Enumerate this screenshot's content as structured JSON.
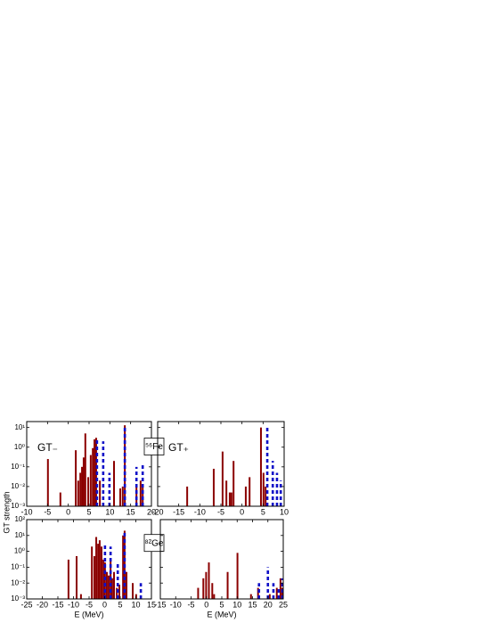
{
  "chart_data": [
    {
      "type": "bar",
      "yscale": "log",
      "ylabel": "GT strength",
      "annotation": "GT₋",
      "inset": "⁵⁶Fe",
      "xlim": [
        -10,
        20
      ],
      "xticks": [
        -10,
        -5,
        0,
        5,
        10,
        15,
        20
      ],
      "ylim": [
        0.001,
        20
      ],
      "yticks": [
        {
          "value": 0.001,
          "label": "10⁻³"
        },
        {
          "value": 0.01,
          "label": "10⁻²"
        },
        {
          "value": 0.1,
          "label": "10⁻¹"
        },
        {
          "value": 1,
          "label": "10⁰"
        },
        {
          "value": 10,
          "label": "10¹"
        }
      ],
      "series": [
        {
          "color": "#8b0000",
          "style": "solid",
          "x": [
            -4.9,
            -1.9,
            1.8,
            2.4,
            2.9,
            3.3,
            3.7,
            4.1,
            4.8,
            5.4,
            5.9,
            6.3,
            6.7,
            7.6,
            11,
            12.5,
            13.1,
            13.6,
            16.4,
            17.4,
            17.9
          ],
          "values": [
            0.25,
            0.005,
            0.7,
            0.02,
            0.05,
            0.1,
            0.3,
            5,
            0.03,
            0.4,
            0.9,
            2.5,
            3,
            0.02,
            0.2,
            0.008,
            0.01,
            13,
            0.01,
            0.02,
            0.01
          ]
        },
        {
          "color": "#1010c8",
          "style": "dashed",
          "x": [
            6.9,
            8.4,
            9.9,
            13.6,
            16.4,
            17.9
          ],
          "values": [
            3,
            2,
            0.05,
            13,
            0.1,
            0.15
          ]
        }
      ]
    },
    {
      "type": "bar",
      "yscale": "log",
      "annotation": "GT₊",
      "xlim": [
        -20,
        10
      ],
      "xticks": [
        -20,
        -15,
        -10,
        -5,
        0,
        5,
        10
      ],
      "ylim": [
        0.001,
        20
      ],
      "yticks": [
        {
          "value": 0.001,
          "label": "10⁻³"
        },
        {
          "value": 0.01,
          "label": "10⁻²"
        },
        {
          "value": 0.1,
          "label": "10⁻¹"
        },
        {
          "value": 1,
          "label": "10⁰"
        },
        {
          "value": 10,
          "label": "10¹"
        }
      ],
      "series": [
        {
          "color": "#8b0000",
          "style": "solid",
          "x": [
            -13,
            -6.7,
            -4.6,
            -3.7,
            -2.9,
            -2.5,
            -2,
            0.9,
            1.8,
            4.5,
            5.1,
            5.6
          ],
          "values": [
            0.01,
            0.08,
            0.6,
            0.02,
            0.005,
            0.005,
            0.2,
            0.01,
            0.03,
            10,
            0.05,
            0.01
          ]
        },
        {
          "color": "#1010c8",
          "style": "dashed",
          "x": [
            6,
            7.3,
            8.3,
            9.2
          ],
          "values": [
            10,
            0.2,
            0.05,
            0.02
          ]
        }
      ]
    },
    {
      "type": "bar",
      "yscale": "log",
      "xlabel": "E (MeV)",
      "inset": "⁸²Ge",
      "xlim": [
        -25,
        15
      ],
      "xticks": [
        -25,
        -20,
        -15,
        -10,
        -5,
        0,
        5,
        10,
        15
      ],
      "ylim": [
        0.001,
        100
      ],
      "yticks": [
        {
          "value": 0.001,
          "label": "10⁻³"
        },
        {
          "value": 0.01,
          "label": "10⁻²"
        },
        {
          "value": 0.1,
          "label": "10⁻¹"
        },
        {
          "value": 1,
          "label": "10⁰"
        },
        {
          "value": 10,
          "label": "10¹"
        },
        {
          "value": 100,
          "label": "10²"
        }
      ],
      "series": [
        {
          "color": "#8b0000",
          "style": "solid",
          "x": [
            -11.6,
            -9,
            -7.6,
            -4.1,
            -3.3,
            -2.7,
            -2.1,
            -1.6,
            -1,
            -0.4,
            0.1,
            0.7,
            1.3,
            1.9,
            2.4,
            3,
            3.9,
            4.7,
            5.9,
            6.4,
            7,
            9,
            10.1
          ],
          "values": [
            0.3,
            0.5,
            0.002,
            2,
            0.5,
            8,
            3,
            5,
            2,
            0.3,
            0.2,
            0.05,
            0.03,
            0.3,
            0.02,
            0.05,
            0.005,
            0.008,
            10,
            20,
            0.05,
            0.01,
            0.002
          ]
        },
        {
          "color": "#1010c8",
          "style": "dashed",
          "x": [
            0.1,
            1.9,
            4.2,
            6.4,
            11.6
          ],
          "values": [
            3,
            2,
            0.2,
            20,
            0.01
          ]
        }
      ]
    },
    {
      "type": "bar",
      "yscale": "log",
      "xlabel": "E (MeV)",
      "xlim": [
        -15,
        25
      ],
      "xticks": [
        -15,
        -10,
        -5,
        0,
        5,
        10,
        15,
        20,
        25
      ],
      "ylim": [
        0.001,
        100
      ],
      "yticks": [
        {
          "value": 0.001,
          "label": "10⁻³"
        },
        {
          "value": 0.01,
          "label": "10⁻²"
        },
        {
          "value": 0.1,
          "label": "10⁻¹"
        },
        {
          "value": 1,
          "label": "10⁰"
        },
        {
          "value": 10,
          "label": "10¹"
        },
        {
          "value": 100,
          "label": "10²"
        }
      ],
      "series": [
        {
          "color": "#8b0000",
          "style": "solid",
          "x": [
            -2.7,
            -1,
            -0.1,
            0.8,
            1.9,
            2.5,
            6.9,
            10.1,
            14.5,
            16.8,
            20.6,
            22.9,
            24.1,
            24.7
          ],
          "values": [
            0.005,
            0.02,
            0.05,
            0.2,
            0.01,
            0.002,
            0.05,
            0.8,
            0.002,
            0.005,
            0.002,
            0.005,
            0.02,
            0.005
          ]
        },
        {
          "color": "#1010c8",
          "style": "dashed",
          "x": [
            17.1,
            20,
            21.8,
            23.5,
            24.7
          ],
          "values": [
            0.01,
            0.1,
            0.01,
            0.005,
            0.02
          ]
        }
      ]
    }
  ]
}
